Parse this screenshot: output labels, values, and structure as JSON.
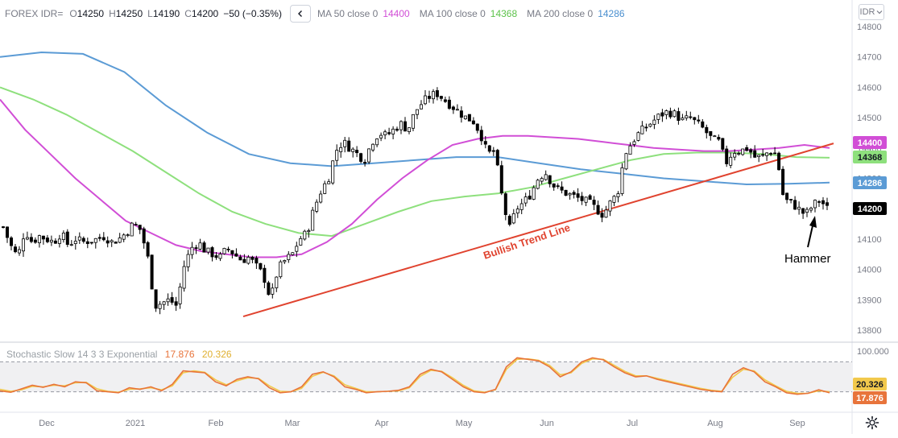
{
  "header": {
    "symbol": "FOREX IDR=",
    "o_label": "O",
    "o_value": "14250",
    "h_label": "H",
    "h_value": "14250",
    "l_label": "L",
    "l_value": "14190",
    "c_label": "C",
    "c_value": "14200",
    "change": "−50 (−0.35%)",
    "collapse_icon": "chevron-left-icon",
    "ma50_label": "MA 50 close 0",
    "ma50_value": "14400",
    "ma100_label": "MA 100 close 0",
    "ma100_value": "14368",
    "ma200_label": "MA 200 close 0",
    "ma200_value": "14286",
    "currency": "IDR"
  },
  "colors": {
    "ma50": "#d14ed6",
    "ma100": "#8ee07d",
    "ma200": "#5b9bd5",
    "trendline": "#e0432f",
    "stoch_k": "#e8743b",
    "stoch_d": "#f2c94c",
    "candle": "#000000",
    "axis_text": "#787b86"
  },
  "annotations": {
    "trendline_label": "Bullish Trend Line",
    "hammer_label": "Hammer"
  },
  "price_axis": {
    "ticks": [
      "14800",
      "14700",
      "14600",
      "14500",
      "14400",
      "14300",
      "14200",
      "14100",
      "14000",
      "13900",
      "13800"
    ],
    "badges": [
      {
        "text": "14400",
        "value": 14400,
        "bg": "#d14ed6",
        "fg": "#ffffff"
      },
      {
        "text": "14368",
        "value": 14368,
        "bg": "#8ee07d",
        "fg": "#131722"
      },
      {
        "text": "14286",
        "value": 14286,
        "bg": "#5b9bd5",
        "fg": "#ffffff"
      },
      {
        "text": "14200",
        "value": 14200,
        "bg": "#000000",
        "fg": "#ffffff"
      }
    ]
  },
  "stochastic": {
    "label": "Stochastic Slow 14 3 3 Exponential",
    "k_value": "17.876",
    "d_value": "20.326",
    "axis_top": "100.000",
    "badges": [
      {
        "text": "20.326",
        "value": 20.326,
        "bg": "#f2c94c",
        "fg": "#131722"
      },
      {
        "text": "17.876",
        "value": 17.876,
        "bg": "#e8743b",
        "fg": "#ffffff"
      }
    ]
  },
  "time_axis": {
    "labels": [
      "Dec",
      "2021",
      "Feb",
      "Mar",
      "Apr",
      "May",
      "Jun",
      "Jul",
      "Aug",
      "Sep"
    ]
  },
  "chart_data": {
    "type": "candlestick",
    "ylim": [
      13760,
      14850
    ],
    "oscillator_ylim": [
      0,
      100
    ],
    "oscillator_levels": [
      80,
      20
    ],
    "time_axis_labels": [
      "Dec",
      "2021",
      "Feb",
      "Mar",
      "Apr",
      "May",
      "Jun",
      "Jul",
      "Aug",
      "Sep"
    ],
    "close_path": [
      14140,
      14080,
      14040,
      14130,
      14090,
      14110,
      14100,
      14090,
      14120,
      14080,
      14100,
      14090,
      14095,
      14100,
      14110,
      14090,
      14100,
      14120,
      14150,
      14130,
      14040,
      13880,
      13890,
      13900,
      13880,
      14010,
      14070,
      14090,
      14060,
      14050,
      14040,
      14070,
      14050,
      14030,
      14040,
      14010,
      13980,
      13900,
      14000,
      14030,
      14050,
      14100,
      14120,
      14200,
      14260,
      14300,
      14390,
      14420,
      14400,
      14380,
      14360,
      14420,
      14450,
      14440,
      14460,
      14480,
      14460,
      14520,
      14550,
      14570,
      14580,
      14560,
      14540,
      14520,
      14500,
      14490,
      14450,
      14380,
      14390,
      14240,
      14130,
      14200,
      14220,
      14250,
      14300,
      14320,
      14280,
      14260,
      14250,
      14240,
      14230,
      14220,
      14200,
      14180,
      14220,
      14250,
      14380,
      14420,
      14450,
      14470,
      14490,
      14510,
      14520,
      14510,
      14490,
      14500,
      14480,
      14460,
      14430,
      14420,
      14350,
      14390,
      14390,
      14400,
      14370,
      14370,
      14390,
      14380,
      14230,
      14220,
      14200,
      14180,
      14210,
      14230,
      14200
    ],
    "series": [
      {
        "name": "MA 50 close 0",
        "color": "#d14ed6",
        "values": [
          14560,
          14460,
          14380,
          14300,
          14230,
          14160,
          14120,
          14080,
          14060,
          14050,
          14040,
          14040,
          14050,
          14090,
          14150,
          14230,
          14300,
          14360,
          14410,
          14430,
          14440,
          14440,
          14435,
          14430,
          14420,
          14410,
          14400,
          14395,
          14390,
          14390,
          14395,
          14400,
          14410,
          14400
        ]
      },
      {
        "name": "MA 100 close 0",
        "color": "#8ee07d",
        "values": [
          14600,
          14560,
          14510,
          14450,
          14390,
          14320,
          14250,
          14190,
          14150,
          14120,
          14110,
          14150,
          14190,
          14225,
          14240,
          14250,
          14270,
          14300,
          14330,
          14360,
          14380,
          14385,
          14385,
          14380,
          14370,
          14368
        ]
      },
      {
        "name": "MA 200 close 0",
        "color": "#5b9bd5",
        "values": [
          14700,
          14715,
          14710,
          14650,
          14540,
          14450,
          14380,
          14350,
          14340,
          14350,
          14360,
          14370,
          14370,
          14350,
          14330,
          14315,
          14300,
          14290,
          14280,
          14282,
          14286
        ]
      },
      {
        "name": "Stoch %K",
        "color": "#e8743b",
        "values": [
          22,
          19,
          26,
          33,
          29,
          35,
          30,
          40,
          38,
          22,
          20,
          18,
          28,
          25,
          30,
          22,
          35,
          62,
          60,
          58,
          40,
          32,
          45,
          50,
          46,
          28,
          18,
          20,
          30,
          55,
          60,
          50,
          30,
          25,
          18,
          20,
          21,
          23,
          30,
          55,
          65,
          60,
          45,
          30,
          20,
          18,
          25,
          70,
          88,
          85,
          82,
          70,
          50,
          60,
          80,
          88,
          84,
          70,
          58,
          50,
          52,
          45,
          40,
          35,
          30,
          25,
          22,
          20,
          55,
          68,
          60,
          40,
          30,
          18,
          15,
          17,
          24,
          18
        ]
      },
      {
        "name": "Stoch %D",
        "color": "#f2c94c",
        "values": [
          25,
          21,
          24,
          31,
          30,
          33,
          32,
          38,
          39,
          26,
          21,
          19,
          25,
          26,
          28,
          24,
          32,
          58,
          62,
          59,
          44,
          34,
          42,
          48,
          47,
          32,
          21,
          20,
          27,
          51,
          59,
          52,
          34,
          27,
          20,
          20,
          21,
          22,
          28,
          51,
          63,
          61,
          48,
          33,
          22,
          19,
          24,
          65,
          85,
          86,
          83,
          73,
          54,
          58,
          77,
          86,
          85,
          73,
          61,
          52,
          52,
          47,
          42,
          37,
          32,
          27,
          23,
          21,
          49,
          65,
          62,
          44,
          32,
          21,
          17,
          17,
          22,
          20
        ]
      }
    ]
  }
}
